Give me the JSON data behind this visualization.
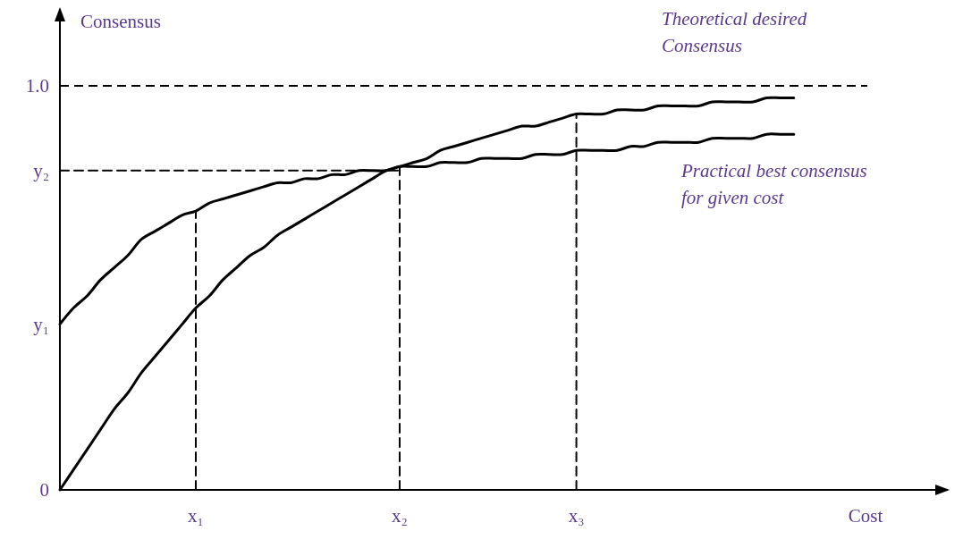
{
  "chart_data": {
    "type": "line",
    "xlabel": "Cost",
    "ylabel": "Consensus",
    "categories": [
      null,
      null,
      null,
      null,
      null,
      null,
      null,
      null,
      null,
      null,
      "x₁",
      null,
      null,
      null,
      null,
      null,
      null,
      null,
      null,
      null,
      null,
      null,
      null,
      null,
      null,
      "x₂",
      null,
      null,
      null,
      null,
      null,
      null,
      null,
      null,
      null,
      null,
      null,
      null,
      "x₃",
      null,
      null,
      null,
      null,
      null,
      null,
      null,
      null,
      null,
      null,
      null,
      null,
      null,
      null,
      null,
      null,
      null,
      null,
      null,
      null,
      null,
      null,
      null,
      null,
      null,
      null,
      null
    ],
    "ylim": [
      0,
      1.19
    ],
    "yticks": [
      0,
      {
        "value": 0.41,
        "label": "y₁"
      },
      {
        "value": 0.79,
        "label": "y₂"
      },
      {
        "value": 1,
        "label": "1.0"
      }
    ],
    "marker": "none",
    "series": [
      {
        "color": "#000000",
        "line_style": "solid",
        "values": [
          0.41,
          0.45,
          0.48,
          0.52,
          0.55,
          0.58,
          0.62,
          0.64,
          0.66,
          0.68,
          0.69,
          0.71,
          0.72,
          0.73,
          0.74,
          0.75,
          0.76,
          0.76,
          0.77,
          0.77,
          0.78,
          0.78,
          0.79,
          0.79,
          0.79,
          0.8,
          0.8,
          0.8,
          0.81,
          0.81,
          0.81,
          0.82,
          0.82,
          0.82,
          0.82,
          0.83,
          0.83,
          0.83,
          0.84,
          0.84,
          0.84,
          0.84,
          0.85,
          0.85,
          0.86,
          0.86,
          0.86,
          0.86,
          0.87,
          0.87,
          0.87,
          0.87,
          0.88,
          0.88,
          0.88,
          null,
          null,
          null,
          null,
          null,
          null,
          null,
          null,
          null,
          null,
          null
        ]
      },
      {
        "color": "#000000",
        "line_style": "solid",
        "values": [
          0,
          0.05,
          0.1,
          0.15,
          0.2,
          0.24,
          0.29,
          0.33,
          0.37,
          0.41,
          0.45,
          0.48,
          0.52,
          0.55,
          0.58,
          0.6,
          0.63,
          0.65,
          0.67,
          0.69,
          0.71,
          0.73,
          0.75,
          0.77,
          0.79,
          0.8,
          0.81,
          0.82,
          0.84,
          0.85,
          0.86,
          0.87,
          0.88,
          0.89,
          0.9,
          0.9,
          0.91,
          0.92,
          0.93,
          0.93,
          0.93,
          0.94,
          0.94,
          0.94,
          0.95,
          0.95,
          0.95,
          0.95,
          0.96,
          0.96,
          0.96,
          0.96,
          0.97,
          0.97,
          0.97,
          null,
          null,
          null,
          null,
          null,
          null,
          null,
          null,
          null,
          null,
          null
        ]
      },
      {
        "color": "#000000",
        "line_style": "dashed",
        "values": [
          0.79,
          0.79,
          0.79,
          0.79,
          0.79,
          0.79,
          0.79,
          0.79,
          0.79,
          0.79,
          0.79,
          0.79,
          0.79,
          0.79,
          0.79,
          0.79,
          0.79,
          0.79,
          0.79,
          0.79,
          0.79,
          0.79,
          0.79,
          0.79,
          0.79,
          0.79,
          null,
          null,
          null,
          null,
          null,
          null,
          null,
          null,
          null,
          null,
          null,
          null,
          null,
          null,
          null,
          null,
          null,
          null,
          null,
          null,
          null,
          null,
          null,
          null,
          null,
          null,
          null,
          null,
          null,
          null,
          null,
          null,
          null,
          null,
          null,
          null,
          null,
          null,
          null,
          null
        ]
      },
      {
        "color": "#000000",
        "line_style": "dashed",
        "x": [
          "x₁",
          "x₁"
        ],
        "values": [
          0,
          0.69
        ]
      },
      {
        "color": "#000000",
        "line_style": "dashed",
        "x": [
          "x₂",
          "x₂"
        ],
        "values": [
          0,
          0.8
        ]
      },
      {
        "color": "#000000",
        "line_style": "dashed",
        "x": [
          "x₃",
          "x₃"
        ],
        "values": [
          0,
          0.93
        ]
      }
    ],
    "ref_lines": [
      {
        "axis": "y",
        "value": 1,
        "color": "#000000",
        "line_style": "dashed"
      }
    ],
    "annotations": [
      "Theoretical desired Consensus",
      "Practical best consensus for given cost"
    ]
  }
}
